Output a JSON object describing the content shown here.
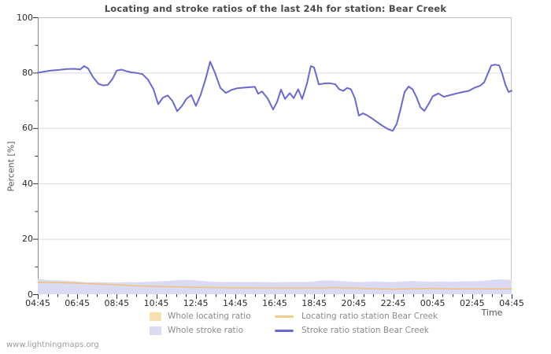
{
  "page": {
    "watermark": "www.lightningmaps.org"
  },
  "chart_data": {
    "type": "line",
    "title": "Locating and stroke ratios of the last 24h for station: Bear Creek",
    "xlabel": "Time",
    "ylabel": "Percent  [%]",
    "ylim": [
      0,
      100
    ],
    "yticks": [
      0,
      20,
      40,
      60,
      80,
      100
    ],
    "y_minor_ticks": [
      10,
      30,
      50,
      70,
      90
    ],
    "x_hours_range": [
      0,
      24
    ],
    "x_tick_labels": [
      "04:45",
      "06:45",
      "08:45",
      "10:45",
      "12:45",
      "14:45",
      "16:45",
      "18:45",
      "20:45",
      "22:45",
      "00:45",
      "02:45",
      "04:45"
    ],
    "grid": "horizontal-major",
    "legend_position": "bottom-center",
    "series": [
      {
        "name": "Whole locating ratio",
        "kind": "area",
        "color": "#f8e0b0",
        "points": [
          [
            0,
            5.6
          ],
          [
            0.5,
            5.1
          ],
          [
            1,
            4.7
          ],
          [
            1.5,
            4.4
          ],
          [
            2,
            4.1
          ],
          [
            2.5,
            3.9
          ],
          [
            3,
            3.8
          ],
          [
            3.5,
            3.6
          ],
          [
            4,
            3.4
          ],
          [
            4.5,
            3.2
          ],
          [
            5,
            3.0
          ],
          [
            5.5,
            2.9
          ],
          [
            6,
            2.8
          ],
          [
            6.5,
            2.7
          ],
          [
            7,
            2.6
          ],
          [
            7.5,
            2.6
          ],
          [
            8,
            2.5
          ],
          [
            8.5,
            2.4
          ],
          [
            9,
            2.4
          ],
          [
            9.5,
            2.3
          ],
          [
            10,
            2.3
          ],
          [
            10.5,
            2.2
          ],
          [
            11,
            2.2
          ],
          [
            11.5,
            2.2
          ],
          [
            12,
            2.1
          ],
          [
            12.5,
            2.2
          ],
          [
            13,
            2.2
          ],
          [
            13.5,
            2.1
          ],
          [
            14,
            2.1
          ],
          [
            14.5,
            2.2
          ],
          [
            15,
            2.3
          ],
          [
            15.5,
            2.2
          ],
          [
            16,
            2.1
          ],
          [
            16.5,
            2.0
          ],
          [
            17,
            2.0
          ],
          [
            17.5,
            1.9
          ],
          [
            18,
            1.9
          ],
          [
            18.5,
            1.9
          ],
          [
            19,
            2.0
          ],
          [
            19.5,
            1.9
          ],
          [
            20,
            1.9
          ],
          [
            20.5,
            1.8
          ],
          [
            21,
            1.8
          ],
          [
            21.5,
            1.9
          ],
          [
            22,
            1.9
          ],
          [
            22.5,
            1.8
          ],
          [
            23,
            1.8
          ],
          [
            23.5,
            1.8
          ],
          [
            24,
            1.8
          ]
        ]
      },
      {
        "name": "Whole stroke ratio",
        "kind": "area",
        "color": "#dadaf2",
        "points": [
          [
            0,
            5.3
          ],
          [
            0.5,
            5.1
          ],
          [
            1,
            5.0
          ],
          [
            1.5,
            4.8
          ],
          [
            2,
            4.6
          ],
          [
            2.5,
            4.3
          ],
          [
            3,
            4.4
          ],
          [
            3.5,
            4.3
          ],
          [
            4,
            4.2
          ],
          [
            4.5,
            4.4
          ],
          [
            5,
            4.3
          ],
          [
            5.5,
            4.5
          ],
          [
            6,
            4.6
          ],
          [
            6.5,
            4.8
          ],
          [
            7,
            5.0
          ],
          [
            7.5,
            5.2
          ],
          [
            8,
            5.0
          ],
          [
            8.5,
            4.7
          ],
          [
            9,
            4.5
          ],
          [
            9.5,
            4.4
          ],
          [
            10,
            4.5
          ],
          [
            10.5,
            4.4
          ],
          [
            11,
            4.5
          ],
          [
            11.5,
            4.4
          ],
          [
            12,
            4.3
          ],
          [
            12.5,
            4.4
          ],
          [
            13,
            4.5
          ],
          [
            13.5,
            4.4
          ],
          [
            14,
            4.6
          ],
          [
            14.5,
            5.0
          ],
          [
            15,
            4.9
          ],
          [
            15.5,
            4.7
          ],
          [
            16,
            4.5
          ],
          [
            16.5,
            4.4
          ],
          [
            17,
            4.6
          ],
          [
            17.5,
            4.5
          ],
          [
            18,
            4.4
          ],
          [
            18.5,
            4.6
          ],
          [
            19,
            4.8
          ],
          [
            19.5,
            4.6
          ],
          [
            20,
            4.5
          ],
          [
            20.5,
            4.6
          ],
          [
            21,
            4.5
          ],
          [
            21.5,
            4.6
          ],
          [
            22,
            4.7
          ],
          [
            22.5,
            4.8
          ],
          [
            23,
            5.2
          ],
          [
            23.5,
            5.4
          ],
          [
            24,
            5.2
          ]
        ]
      },
      {
        "name": "Locating ratio station Bear Creek",
        "kind": "line",
        "color": "#eec27c",
        "width": 1.5,
        "points": [
          [
            0,
            4.3
          ],
          [
            1,
            4.2
          ],
          [
            2,
            4.0
          ],
          [
            3,
            3.7
          ],
          [
            4,
            3.4
          ],
          [
            5,
            3.0
          ],
          [
            6,
            2.8
          ],
          [
            7,
            2.7
          ],
          [
            8,
            2.5
          ],
          [
            9,
            2.4
          ],
          [
            10,
            2.3
          ],
          [
            11,
            2.3
          ],
          [
            12,
            2.2
          ],
          [
            13,
            2.3
          ],
          [
            14,
            2.2
          ],
          [
            15,
            2.4
          ],
          [
            16,
            2.2
          ],
          [
            17,
            2.0
          ],
          [
            18,
            1.8
          ],
          [
            19,
            2.0
          ],
          [
            20,
            2.1
          ],
          [
            21,
            1.9
          ],
          [
            22,
            2.0
          ],
          [
            23,
            1.9
          ],
          [
            24,
            1.9
          ]
        ]
      },
      {
        "name": "Stroke ratio station Bear Creek",
        "kind": "line",
        "color": "#6969d2",
        "width": 2,
        "points": [
          [
            0,
            80.0
          ],
          [
            0.28,
            80.3
          ],
          [
            0.68,
            80.8
          ],
          [
            1.08,
            81.0
          ],
          [
            1.47,
            81.3
          ],
          [
            1.87,
            81.4
          ],
          [
            2.15,
            81.2
          ],
          [
            2.35,
            82.4
          ],
          [
            2.55,
            81.5
          ],
          [
            2.79,
            78.5
          ],
          [
            3.07,
            76.0
          ],
          [
            3.31,
            75.4
          ],
          [
            3.55,
            75.6
          ],
          [
            3.79,
            77.8
          ],
          [
            3.99,
            80.7
          ],
          [
            4.23,
            81.1
          ],
          [
            4.46,
            80.6
          ],
          [
            4.74,
            80.1
          ],
          [
            5.02,
            79.9
          ],
          [
            5.3,
            79.5
          ],
          [
            5.58,
            77.5
          ],
          [
            5.86,
            74.0
          ],
          [
            6.1,
            68.6
          ],
          [
            6.34,
            71.0
          ],
          [
            6.58,
            71.8
          ],
          [
            6.82,
            69.8
          ],
          [
            7.06,
            66.1
          ],
          [
            7.29,
            67.9
          ],
          [
            7.53,
            70.6
          ],
          [
            7.77,
            71.9
          ],
          [
            8.01,
            68.0
          ],
          [
            8.25,
            72.0
          ],
          [
            8.49,
            77.5
          ],
          [
            8.73,
            84.0
          ],
          [
            8.97,
            80.0
          ],
          [
            9.25,
            74.5
          ],
          [
            9.53,
            72.7
          ],
          [
            9.81,
            73.8
          ],
          [
            10.12,
            74.4
          ],
          [
            10.44,
            74.6
          ],
          [
            10.76,
            74.8
          ],
          [
            11.0,
            74.9
          ],
          [
            11.16,
            72.4
          ],
          [
            11.36,
            73.2
          ],
          [
            11.64,
            70.7
          ],
          [
            11.92,
            66.7
          ],
          [
            12.12,
            69.5
          ],
          [
            12.32,
            73.9
          ],
          [
            12.52,
            70.5
          ],
          [
            12.76,
            72.6
          ],
          [
            12.96,
            70.8
          ],
          [
            13.19,
            74.0
          ],
          [
            13.39,
            70.5
          ],
          [
            13.63,
            76.0
          ],
          [
            13.83,
            82.4
          ],
          [
            13.99,
            81.9
          ],
          [
            14.11,
            79.0
          ],
          [
            14.23,
            75.8
          ],
          [
            14.51,
            76.1
          ],
          [
            14.79,
            76.2
          ],
          [
            15.07,
            75.8
          ],
          [
            15.27,
            74.0
          ],
          [
            15.47,
            73.4
          ],
          [
            15.67,
            74.5
          ],
          [
            15.86,
            74.0
          ],
          [
            16.06,
            70.8
          ],
          [
            16.26,
            64.5
          ],
          [
            16.46,
            65.3
          ],
          [
            16.66,
            64.7
          ],
          [
            16.9,
            63.6
          ],
          [
            17.18,
            62.2
          ],
          [
            17.46,
            60.8
          ],
          [
            17.74,
            59.6
          ],
          [
            17.98,
            59.0
          ],
          [
            18.18,
            61.5
          ],
          [
            18.38,
            67.0
          ],
          [
            18.58,
            73.0
          ],
          [
            18.78,
            75.0
          ],
          [
            18.98,
            74.0
          ],
          [
            19.18,
            71.2
          ],
          [
            19.38,
            67.5
          ],
          [
            19.58,
            66.2
          ],
          [
            19.78,
            68.5
          ],
          [
            20.01,
            71.5
          ],
          [
            20.29,
            72.5
          ],
          [
            20.57,
            71.3
          ],
          [
            20.89,
            71.9
          ],
          [
            21.21,
            72.5
          ],
          [
            21.53,
            73.0
          ],
          [
            21.85,
            73.5
          ],
          [
            22.13,
            74.6
          ],
          [
            22.41,
            75.3
          ],
          [
            22.61,
            76.5
          ],
          [
            22.81,
            80.0
          ],
          [
            22.97,
            82.6
          ],
          [
            23.17,
            82.9
          ],
          [
            23.37,
            82.6
          ],
          [
            23.53,
            79.5
          ],
          [
            23.69,
            75.5
          ],
          [
            23.85,
            73.0
          ],
          [
            24,
            73.5
          ]
        ]
      }
    ]
  },
  "legend": {
    "items": [
      {
        "label": "Whole locating ratio",
        "swatch": "area",
        "color": "#f8e0b0"
      },
      {
        "label": "Locating ratio station Bear Creek",
        "swatch": "line",
        "color": "#f0cd8a"
      },
      {
        "label": "Whole stroke ratio",
        "swatch": "area",
        "color": "#dadaf2"
      },
      {
        "label": "Stroke ratio station Bear Creek",
        "swatch": "line",
        "color": "#6969d2"
      }
    ]
  }
}
